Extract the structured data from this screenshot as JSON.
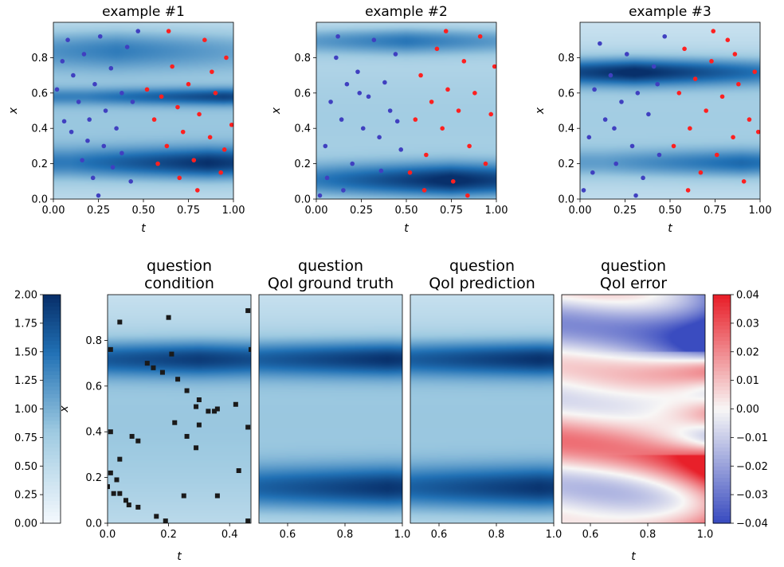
{
  "colors": {
    "blue_low": "#f3f8fd",
    "blue_high": "#08306b",
    "blue_marker": "#4040c0",
    "red_marker": "#ff2020",
    "err_low": "#3a4cc0",
    "err_mid": "#f8f7f6",
    "err_high": "#e8202a",
    "marker_square": "#1a1a1a"
  },
  "chart_data": [
    {
      "type": "heatmap",
      "title": "example #1",
      "xlabel": "t",
      "ylabel": "x",
      "xlim": [
        0,
        1
      ],
      "ylim": [
        0,
        1
      ],
      "xticks": [
        "0.00",
        "0.25",
        "0.50",
        "0.75",
        "1.00"
      ],
      "yticks": [
        "0.0",
        "0.2",
        "0.4",
        "0.6",
        "0.8"
      ],
      "bands": [
        {
          "x": 0.86,
          "center": 0.2,
          "width": 0.09,
          "amp": 0.85
        },
        {
          "x": 0.95,
          "center": 0.58,
          "width": 0.05,
          "amp": 0.7
        },
        {
          "x": 0.35,
          "center": 0.85,
          "width": 0.12,
          "amp": 0.55
        }
      ],
      "base": 0.55,
      "points_blue": [
        [
          0.02,
          0.62
        ],
        [
          0.05,
          0.78
        ],
        [
          0.08,
          0.9
        ],
        [
          0.11,
          0.7
        ],
        [
          0.14,
          0.55
        ],
        [
          0.17,
          0.82
        ],
        [
          0.2,
          0.45
        ],
        [
          0.23,
          0.65
        ],
        [
          0.26,
          0.92
        ],
        [
          0.29,
          0.5
        ],
        [
          0.32,
          0.74
        ],
        [
          0.35,
          0.4
        ],
        [
          0.38,
          0.6
        ],
        [
          0.41,
          0.86
        ],
        [
          0.44,
          0.55
        ],
        [
          0.47,
          0.95
        ],
        [
          0.1,
          0.38
        ],
        [
          0.16,
          0.22
        ],
        [
          0.22,
          0.12
        ],
        [
          0.28,
          0.3
        ],
        [
          0.33,
          0.18
        ],
        [
          0.38,
          0.26
        ],
        [
          0.43,
          0.1
        ],
        [
          0.06,
          0.44
        ],
        [
          0.19,
          0.33
        ],
        [
          0.25,
          0.02
        ]
      ],
      "points_red": [
        [
          0.52,
          0.62
        ],
        [
          0.56,
          0.45
        ],
        [
          0.6,
          0.58
        ],
        [
          0.63,
          0.3
        ],
        [
          0.66,
          0.75
        ],
        [
          0.69,
          0.52
        ],
        [
          0.72,
          0.38
        ],
        [
          0.75,
          0.65
        ],
        [
          0.78,
          0.22
        ],
        [
          0.81,
          0.48
        ],
        [
          0.84,
          0.9
        ],
        [
          0.87,
          0.35
        ],
        [
          0.9,
          0.6
        ],
        [
          0.93,
          0.15
        ],
        [
          0.96,
          0.8
        ],
        [
          0.99,
          0.42
        ],
        [
          0.64,
          0.95
        ],
        [
          0.7,
          0.12
        ],
        [
          0.8,
          0.05
        ],
        [
          0.58,
          0.2
        ],
        [
          0.88,
          0.72
        ],
        [
          0.95,
          0.28
        ]
      ]
    },
    {
      "type": "heatmap",
      "title": "example #2",
      "xlabel": "t",
      "ylabel": "x",
      "xlim": [
        0,
        1
      ],
      "ylim": [
        0,
        1
      ],
      "xticks": [
        "0.00",
        "0.25",
        "0.50",
        "0.75",
        "1.00"
      ],
      "yticks": [
        "0.0",
        "0.2",
        "0.4",
        "0.6",
        "0.8"
      ],
      "bands": [
        {
          "x": 0.75,
          "center": 0.1,
          "width": 0.1,
          "amp": 1.0
        },
        {
          "x": 0.5,
          "center": 0.9,
          "width": 0.08,
          "amp": 0.65
        }
      ],
      "base": 0.5,
      "points_blue": [
        [
          0.02,
          0.02
        ],
        [
          0.05,
          0.3
        ],
        [
          0.08,
          0.55
        ],
        [
          0.11,
          0.8
        ],
        [
          0.14,
          0.45
        ],
        [
          0.17,
          0.65
        ],
        [
          0.2,
          0.2
        ],
        [
          0.23,
          0.72
        ],
        [
          0.26,
          0.4
        ],
        [
          0.29,
          0.58
        ],
        [
          0.32,
          0.9
        ],
        [
          0.35,
          0.35
        ],
        [
          0.38,
          0.66
        ],
        [
          0.41,
          0.5
        ],
        [
          0.44,
          0.82
        ],
        [
          0.47,
          0.28
        ],
        [
          0.06,
          0.12
        ],
        [
          0.15,
          0.05
        ],
        [
          0.24,
          0.6
        ],
        [
          0.36,
          0.16
        ],
        [
          0.45,
          0.44
        ],
        [
          0.12,
          0.92
        ]
      ],
      "points_red": [
        [
          0.52,
          0.15
        ],
        [
          0.55,
          0.45
        ],
        [
          0.58,
          0.7
        ],
        [
          0.61,
          0.25
        ],
        [
          0.64,
          0.55
        ],
        [
          0.67,
          0.85
        ],
        [
          0.7,
          0.4
        ],
        [
          0.73,
          0.62
        ],
        [
          0.76,
          0.1
        ],
        [
          0.79,
          0.5
        ],
        [
          0.82,
          0.78
        ],
        [
          0.85,
          0.3
        ],
        [
          0.88,
          0.6
        ],
        [
          0.91,
          0.92
        ],
        [
          0.94,
          0.2
        ],
        [
          0.97,
          0.48
        ],
        [
          0.6,
          0.05
        ],
        [
          0.72,
          0.95
        ],
        [
          0.84,
          0.02
        ],
        [
          0.99,
          0.75
        ]
      ]
    },
    {
      "type": "heatmap",
      "title": "example #3",
      "xlabel": "t",
      "ylabel": "x",
      "xlim": [
        0,
        1
      ],
      "ylim": [
        0,
        1
      ],
      "xticks": [
        "0.00",
        "0.25",
        "0.50",
        "0.75",
        "1.00"
      ],
      "yticks": [
        "0.0",
        "0.2",
        "0.4",
        "0.6",
        "0.8"
      ],
      "bands": [
        {
          "x": 0.3,
          "center": 0.72,
          "width": 0.08,
          "amp": 0.95
        },
        {
          "x": 0.9,
          "center": 0.2,
          "width": 0.08,
          "amp": 0.6
        }
      ],
      "base": 0.5,
      "points_blue": [
        [
          0.02,
          0.05
        ],
        [
          0.05,
          0.35
        ],
        [
          0.08,
          0.62
        ],
        [
          0.11,
          0.88
        ],
        [
          0.14,
          0.45
        ],
        [
          0.17,
          0.7
        ],
        [
          0.2,
          0.2
        ],
        [
          0.23,
          0.55
        ],
        [
          0.26,
          0.82
        ],
        [
          0.29,
          0.3
        ],
        [
          0.32,
          0.6
        ],
        [
          0.35,
          0.12
        ],
        [
          0.38,
          0.48
        ],
        [
          0.41,
          0.75
        ],
        [
          0.44,
          0.25
        ],
        [
          0.47,
          0.92
        ],
        [
          0.07,
          0.15
        ],
        [
          0.19,
          0.4
        ],
        [
          0.31,
          0.02
        ],
        [
          0.43,
          0.65
        ]
      ],
      "points_red": [
        [
          0.52,
          0.3
        ],
        [
          0.55,
          0.6
        ],
        [
          0.58,
          0.85
        ],
        [
          0.61,
          0.4
        ],
        [
          0.64,
          0.68
        ],
        [
          0.67,
          0.15
        ],
        [
          0.7,
          0.5
        ],
        [
          0.73,
          0.78
        ],
        [
          0.76,
          0.25
        ],
        [
          0.79,
          0.58
        ],
        [
          0.82,
          0.9
        ],
        [
          0.85,
          0.35
        ],
        [
          0.88,
          0.65
        ],
        [
          0.91,
          0.1
        ],
        [
          0.94,
          0.45
        ],
        [
          0.97,
          0.72
        ],
        [
          0.6,
          0.05
        ],
        [
          0.74,
          0.95
        ],
        [
          0.86,
          0.82
        ],
        [
          0.99,
          0.38
        ]
      ]
    },
    {
      "type": "heatmap",
      "title": "question\ncondition",
      "xlabel": "t",
      "ylabel": "x",
      "xlim": [
        0,
        0.47
      ],
      "ylim": [
        0,
        1
      ],
      "xticks": [
        "0.0",
        "0.2",
        "0.4"
      ],
      "yticks": [
        "0.0",
        "0.2",
        "0.4",
        "0.6",
        "0.8"
      ],
      "bands": [
        {
          "x": 0.3,
          "center": 0.72,
          "width": 0.08,
          "amp": 0.8
        }
      ],
      "base": 0.55,
      "points_square": [
        [
          0.01,
          0.76
        ],
        [
          0.04,
          0.88
        ],
        [
          0.13,
          0.7
        ],
        [
          0.15,
          0.68
        ],
        [
          0.18,
          0.66
        ],
        [
          0.2,
          0.9
        ],
        [
          0.21,
          0.74
        ],
        [
          0.23,
          0.63
        ],
        [
          0.26,
          0.58
        ],
        [
          0.29,
          0.51
        ],
        [
          0.3,
          0.54
        ],
        [
          0.33,
          0.49
        ],
        [
          0.36,
          0.5
        ],
        [
          0.26,
          0.38
        ],
        [
          0.29,
          0.33
        ],
        [
          0.35,
          0.49
        ],
        [
          0.42,
          0.52
        ],
        [
          0.46,
          0.42
        ],
        [
          0.01,
          0.4
        ],
        [
          0.08,
          0.38
        ],
        [
          0.1,
          0.36
        ],
        [
          0.04,
          0.28
        ],
        [
          0.01,
          0.22
        ],
        [
          0.0,
          0.16
        ],
        [
          0.02,
          0.13
        ],
        [
          0.04,
          0.13
        ],
        [
          0.06,
          0.1
        ],
        [
          0.07,
          0.08
        ],
        [
          0.1,
          0.07
        ],
        [
          0.16,
          0.03
        ],
        [
          0.25,
          0.12
        ],
        [
          0.36,
          0.12
        ],
        [
          0.43,
          0.23
        ],
        [
          0.46,
          0.93
        ],
        [
          0.03,
          0.19
        ],
        [
          0.47,
          0.76
        ],
        [
          0.22,
          0.44
        ],
        [
          0.3,
          0.43
        ],
        [
          0.19,
          0.01
        ],
        [
          0.46,
          0.01
        ]
      ]
    },
    {
      "type": "heatmap",
      "title": "question\nQoI ground truth",
      "xlabel": "",
      "xlim": [
        0.5,
        1.0
      ],
      "ylim": [
        0,
        1
      ],
      "xticks": [
        "0.6",
        "0.8",
        "1.0"
      ],
      "bands": [
        {
          "x": 0.95,
          "center": 0.72,
          "width": 0.08,
          "amp": 0.85
        },
        {
          "x": 0.95,
          "center": 0.15,
          "width": 0.1,
          "amp": 0.85
        }
      ],
      "base": 0.55
    },
    {
      "type": "heatmap",
      "title": "question\nQoI prediction",
      "xlabel": "",
      "xlim": [
        0.5,
        1.0
      ],
      "ylim": [
        0,
        1
      ],
      "xticks": [
        "0.6",
        "0.8",
        "1.0"
      ],
      "bands": [
        {
          "x": 0.95,
          "center": 0.72,
          "width": 0.08,
          "amp": 0.85
        },
        {
          "x": 0.95,
          "center": 0.15,
          "width": 0.1,
          "amp": 0.85
        }
      ],
      "base": 0.55
    },
    {
      "type": "heatmap",
      "title": "question\nQoI error",
      "xlabel": "t",
      "xlim": [
        0.5,
        1.0
      ],
      "ylim": [
        0,
        1
      ],
      "xticks": [
        "0.6",
        "0.8",
        "1.0"
      ],
      "error": true
    }
  ],
  "colorbar_left": {
    "ticks": [
      "0.00",
      "0.25",
      "0.50",
      "0.75",
      "1.00",
      "1.25",
      "1.50",
      "1.75",
      "2.00"
    ],
    "range": [
      0,
      2
    ]
  },
  "colorbar_right": {
    "ticks": [
      "−0.04",
      "−0.03",
      "−0.02",
      "−0.01",
      "0.00",
      "0.01",
      "0.02",
      "0.03",
      "0.04"
    ],
    "range": [
      -0.04,
      0.04
    ]
  }
}
